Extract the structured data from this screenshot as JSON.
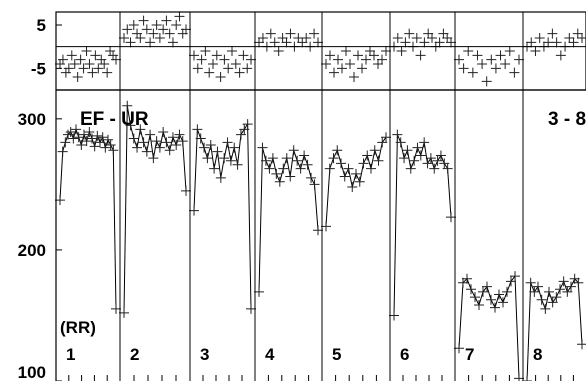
{
  "chart_data": [
    {
      "type": "scatter",
      "panel": "residual",
      "ylim": [
        -10,
        8
      ],
      "yticks": [
        5,
        -5
      ],
      "ytick_labels": [
        "5",
        "-5"
      ],
      "zero_line": true,
      "groups": [
        {
          "label": "1",
          "values": [
            -4,
            -3,
            -6,
            -5,
            -2,
            -4,
            -7,
            -3,
            -5,
            -1,
            -4,
            -6,
            -2,
            -5,
            -3,
            -4,
            -6,
            -1,
            -2,
            -3
          ]
        },
        {
          "label": "2",
          "values": [
            2,
            4,
            1,
            5,
            3,
            2,
            6,
            4,
            1,
            3,
            5,
            2,
            4,
            6,
            3,
            1,
            5,
            7,
            3,
            4
          ]
        },
        {
          "label": "3",
          "values": [
            -2,
            -5,
            -3,
            -1,
            -6,
            -4,
            -2,
            -7,
            -3,
            -5,
            -1,
            -4,
            -6,
            -2,
            -5,
            -3
          ]
        },
        {
          "label": "4",
          "values": [
            1,
            2,
            0,
            3,
            1,
            -1,
            2,
            1,
            3,
            0,
            2,
            1,
            2,
            0,
            3,
            1
          ]
        },
        {
          "label": "5",
          "values": [
            -4,
            -2,
            -6,
            -3,
            -5,
            -1,
            -4,
            -7,
            -2,
            -5,
            -3,
            -1,
            -2,
            -4,
            -3,
            -1
          ]
        },
        {
          "label": "6",
          "values": [
            0,
            2,
            -1,
            1,
            3,
            0,
            2,
            -2,
            1,
            3,
            2,
            0,
            1,
            3,
            2,
            1
          ]
        },
        {
          "label": "7",
          "values": [
            -3,
            -5,
            -1,
            -6,
            -2,
            -4,
            -8,
            -3,
            -5,
            -2,
            -4,
            -1,
            -6,
            -3
          ]
        },
        {
          "label": "8",
          "values": [
            0,
            1,
            -1,
            2,
            0,
            1,
            3,
            1,
            -2,
            0,
            2,
            1,
            3,
            2
          ]
        }
      ]
    },
    {
      "type": "line",
      "panel": "main",
      "title": "EF - UR",
      "annotation": "3 - 8",
      "group_axis_label": "(RR)",
      "ylim": [
        100,
        322
      ],
      "yticks": [
        300,
        200,
        100
      ],
      "ytick_labels": [
        "300",
        "200",
        "100"
      ],
      "groups": [
        {
          "label": "1",
          "values": [
            238,
            275,
            282,
            288,
            290,
            285,
            292,
            286,
            280,
            288,
            283,
            290,
            285,
            279,
            287,
            282,
            286,
            278,
            284,
            280,
            276,
            155
          ]
        },
        {
          "label": "2",
          "values": [
            152,
            310,
            295,
            285,
            278,
            292,
            282,
            275,
            288,
            270,
            283,
            278,
            290,
            282,
            276,
            286,
            280,
            288,
            283,
            245
          ]
        },
        {
          "label": "3",
          "values": [
            230,
            292,
            285,
            278,
            270,
            280,
            262,
            275,
            255,
            270,
            282,
            268,
            278,
            265,
            288,
            292,
            296,
            155
          ]
        },
        {
          "label": "4",
          "values": [
            168,
            278,
            268,
            262,
            270,
            258,
            252,
            262,
            270,
            256,
            276,
            268,
            262,
            272,
            265,
            255,
            250,
            215
          ]
        },
        {
          "label": "5",
          "values": [
            218,
            262,
            270,
            276,
            266,
            256,
            262,
            248,
            258,
            252,
            266,
            272,
            262,
            276,
            268,
            282,
            286
          ]
        },
        {
          "label": "6",
          "values": [
            150,
            288,
            282,
            270,
            276,
            262,
            268,
            278,
            272,
            282,
            266,
            270,
            262,
            268,
            272,
            266,
            262,
            225
          ]
        },
        {
          "label": "7",
          "values": [
            125,
            175,
            178,
            170,
            164,
            158,
            168,
            172,
            162,
            156,
            166,
            160,
            168,
            176,
            180,
            102
          ]
        },
        {
          "label": "8",
          "values": [
            100,
            175,
            168,
            172,
            162,
            155,
            168,
            160,
            164,
            170,
            176,
            168,
            172,
            178,
            175,
            128
          ]
        }
      ]
    }
  ]
}
